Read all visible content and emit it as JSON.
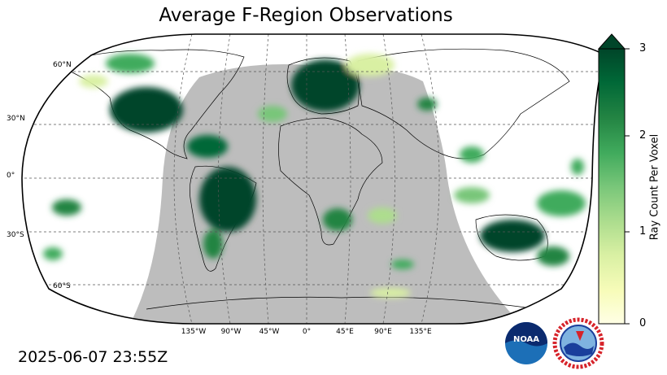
{
  "title": "Average F-Region Observations",
  "timestamp": "2025-06-07 23:55Z",
  "map": {
    "projection": "Robinson",
    "night_shading_color": "#bdbdbd",
    "grid": "dashed",
    "lat_labels": [
      "60°N",
      "30°N",
      "0°",
      "30°S",
      "60°S"
    ],
    "lon_labels": [
      "135°W",
      "90°W",
      "45°W",
      "0°",
      "45°E",
      "90°E",
      "135°E"
    ]
  },
  "colorbar": {
    "label": "Ray Count Per Voxel",
    "ticks": [
      "0",
      "1",
      "2",
      "3"
    ],
    "min": 0,
    "max": 3,
    "extend": "max",
    "colormap": "YlGn",
    "colors": [
      "#ffffe5",
      "#f7fcb9",
      "#d9f0a3",
      "#addd8e",
      "#78c679",
      "#41ab5d",
      "#238443",
      "#006837",
      "#004529"
    ]
  },
  "logos": {
    "noaa": "NOAA",
    "nws_ring": "NATIONAL WEATHER SERVICE"
  }
}
